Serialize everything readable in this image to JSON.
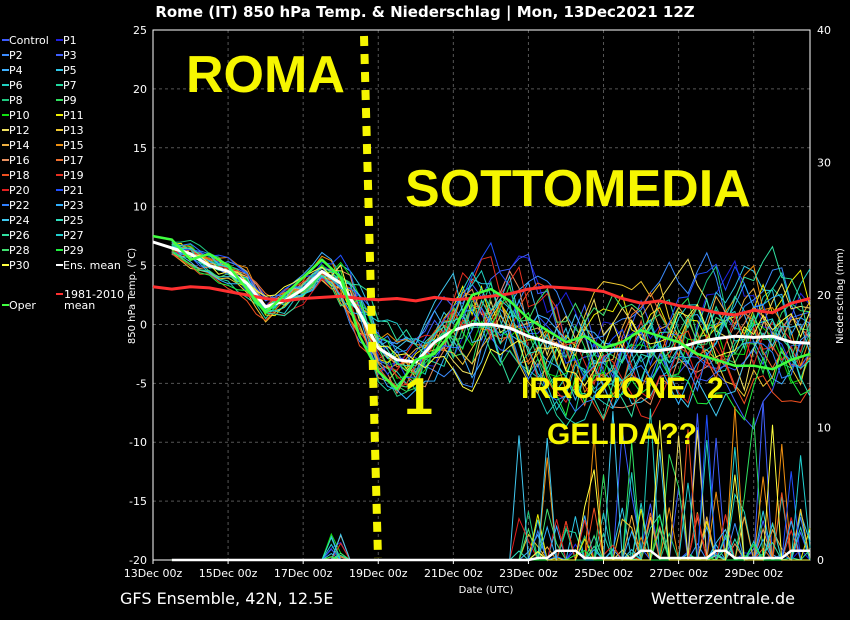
{
  "chart_data": {
    "type": "line",
    "title": "Rome  (IT)  850 hPa Temp. & Niederschlag | Mon, 13Dec2021 12Z",
    "ylabel_left": "850 hPa Temp. (°C)",
    "ylabel_right": "Niederschlag (mm)",
    "xlabel": "Date (UTC)",
    "ylim_left": [
      -20,
      25
    ],
    "ylim_right": [
      0,
      40
    ],
    "xlim_days": [
      0,
      17.5
    ],
    "x_ticks": [
      "13Dec 00z",
      "15Dec 00z",
      "17Dec 00z",
      "19Dec 00z",
      "21Dec 00z",
      "23Dec 00z",
      "25Dec 00z",
      "27Dec 00z",
      "29Dec 00z"
    ],
    "y_ticks_left": [
      25,
      20,
      15,
      10,
      5,
      0,
      -5,
      -10,
      -15,
      -20
    ],
    "y_ticks_right": [
      40,
      30,
      20,
      10,
      0
    ],
    "grid": true,
    "footer_left": "GFS Ensemble, 42N, 12.5E",
    "footer_right": "Wetterzentrale.de",
    "legend": [
      {
        "name": "Control",
        "color": "#3c5cff"
      },
      {
        "name": "P1",
        "color": "#2020e0"
      },
      {
        "name": "P2",
        "color": "#3c8cff"
      },
      {
        "name": "P3",
        "color": "#4060ff"
      },
      {
        "name": "P4",
        "color": "#40b0ff"
      },
      {
        "name": "P5",
        "color": "#30c8e8"
      },
      {
        "name": "P6",
        "color": "#20d0c0"
      },
      {
        "name": "P7",
        "color": "#20d8a0"
      },
      {
        "name": "P8",
        "color": "#20c880"
      },
      {
        "name": "P9",
        "color": "#30e060"
      },
      {
        "name": "P10",
        "color": "#10e010"
      },
      {
        "name": "P11",
        "color": "#f0f000"
      },
      {
        "name": "P12",
        "color": "#f0e060"
      },
      {
        "name": "P13",
        "color": "#f0c830"
      },
      {
        "name": "P14",
        "color": "#f0b040"
      },
      {
        "name": "P15",
        "color": "#f09010"
      },
      {
        "name": "P16",
        "color": "#e89060"
      },
      {
        "name": "P17",
        "color": "#f07030"
      },
      {
        "name": "P18",
        "color": "#f05020"
      },
      {
        "name": "P19",
        "color": "#e83020"
      },
      {
        "name": "P20",
        "color": "#e02020"
      },
      {
        "name": "P21",
        "color": "#2050ff"
      },
      {
        "name": "P22",
        "color": "#3080ff"
      },
      {
        "name": "P23",
        "color": "#30b0ff"
      },
      {
        "name": "P24",
        "color": "#40c8f0"
      },
      {
        "name": "P25",
        "color": "#30e0c0"
      },
      {
        "name": "P26",
        "color": "#30e0a0"
      },
      {
        "name": "P27",
        "color": "#20d0d0"
      },
      {
        "name": "P28",
        "color": "#40e070"
      },
      {
        "name": "P29",
        "color": "#20f040"
      },
      {
        "name": "P30",
        "color": "#ffff40"
      },
      {
        "name": "Ens. mean",
        "color": "#ffffff"
      },
      {
        "name": "1981-2010 mean",
        "color": "#ff3030"
      },
      {
        "name": "Oper",
        "color": "#40ff40"
      }
    ],
    "series": [
      {
        "name": "Ens. mean",
        "color": "#ffffff",
        "x": [
          0,
          0.5,
          1,
          1.5,
          2,
          2.5,
          3,
          3.5,
          4,
          4.5,
          5,
          5.5,
          6,
          6.5,
          7,
          7.5,
          8,
          8.5,
          9,
          9.5,
          10,
          10.5,
          11,
          11.5,
          12,
          12.5,
          13,
          13.5,
          14,
          14.5,
          15,
          15.5,
          16,
          16.5,
          17,
          17.5
        ],
        "y": [
          7,
          6.5,
          6,
          5,
          4.5,
          3.5,
          1.5,
          2,
          3,
          4.5,
          3.5,
          1,
          -2,
          -3,
          -3.2,
          -1.5,
          -0.5,
          0,
          0,
          -0.3,
          -1,
          -1.5,
          -2,
          -2.3,
          -2.2,
          -2.2,
          -2.3,
          -2.2,
          -2.0,
          -1.5,
          -1.2,
          -1.0,
          -1.1,
          -1.0,
          -1.5,
          -1.6
        ]
      },
      {
        "name": "1981-2010 mean",
        "color": "#ff3030",
        "x": [
          0,
          0.5,
          1,
          1.5,
          2,
          2.5,
          3,
          3.5,
          4,
          4.5,
          5,
          5.5,
          6,
          6.5,
          7,
          7.5,
          8,
          8.5,
          9,
          9.5,
          10,
          10.5,
          11,
          11.5,
          12,
          12.5,
          13,
          13.5,
          14,
          14.5,
          15,
          15.5,
          16,
          16.5,
          17,
          17.5
        ],
        "y": [
          3.2,
          3.0,
          3.2,
          3.1,
          2.8,
          2.5,
          2.2,
          2.0,
          2.2,
          2.3,
          2.4,
          2.2,
          2.1,
          2.2,
          2.0,
          2.3,
          2.1,
          2.2,
          2.4,
          2.6,
          3,
          3.2,
          3.1,
          3.0,
          2.8,
          2.2,
          1.8,
          2.0,
          1.6,
          1.4,
          1.0,
          0.8,
          1.2,
          1.0,
          1.8,
          2.2
        ]
      },
      {
        "name": "Oper",
        "color": "#40ff40",
        "x": [
          0,
          0.5,
          1,
          1.5,
          2,
          2.5,
          3,
          3.5,
          4,
          4.5,
          5,
          5.5,
          6,
          6.5,
          7,
          7.5,
          8,
          8.5,
          9,
          9.5,
          10,
          10.5,
          11,
          11.5,
          12,
          12.5,
          13,
          13.5,
          14,
          14.5,
          15,
          15.5,
          16,
          16.5,
          17,
          17.5
        ],
        "y": [
          7.5,
          7.2,
          5.5,
          6.0,
          5.0,
          3.0,
          1.0,
          2.5,
          4.0,
          5.5,
          4.0,
          -1.0,
          -4.0,
          -5.5,
          -3.0,
          -2.5,
          -0.5,
          2.5,
          3.0,
          2.0,
          0.5,
          -0.5,
          -1.5,
          -1.0,
          -2.0,
          -1.5,
          -0.5,
          -1.0,
          -1.5,
          -2.5,
          -3.0,
          -3.5,
          -3.5,
          -3.8,
          -3.0,
          -2.5
        ]
      }
    ],
    "annotations": {
      "city": "ROMA",
      "headline": "SOTTOMEDIA",
      "marker_1": "1",
      "irruzione": "IRRUZIONE",
      "marker_2": "2",
      "gelida": "GELIDA??"
    }
  }
}
